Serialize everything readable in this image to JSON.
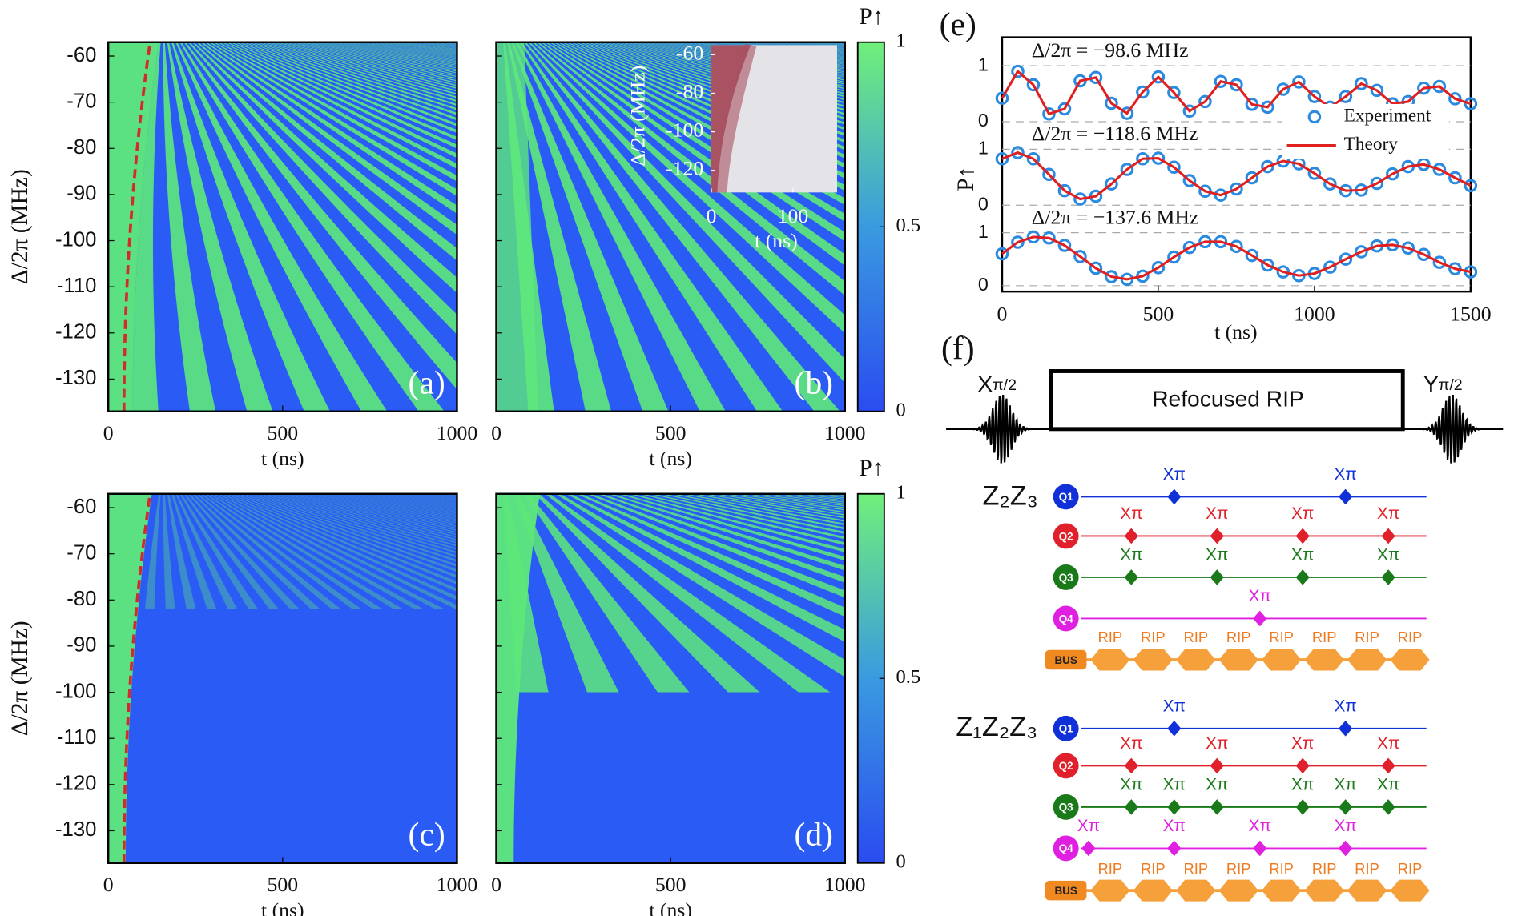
{
  "panels": {
    "a": "(a)",
    "b": "(b)",
    "c": "(c)",
    "d": "(d)",
    "e": "(e)",
    "f": "(f)"
  },
  "heatmap_axes": {
    "xlim": [
      0,
      1000
    ],
    "xticks": [
      0,
      500,
      1000
    ],
    "ylim": [
      -137,
      -57
    ],
    "yticks": [
      -60,
      -70,
      -80,
      -90,
      -100,
      -110,
      -120,
      -130
    ],
    "xlabel": "t (ns)",
    "ylabel": "Δ/2π (MHz)"
  },
  "colorbar": {
    "label": "P↑",
    "lim": [
      0,
      1
    ],
    "ticks": [
      0,
      0.5,
      1
    ]
  },
  "inset": {
    "xlim": [
      0,
      154
    ],
    "xticks": [
      0,
      100
    ],
    "ylim": [
      -131.5,
      -55
    ],
    "yticks": [
      -60,
      -80,
      -100,
      -120
    ],
    "xlabel": "t (ns)",
    "ylabel": "Δ/2π (MHz)"
  },
  "chart_data": {
    "type": "line",
    "xlabel": "t (ns)",
    "ylabel": "P↑",
    "xlim": [
      0,
      1500
    ],
    "xticks": [
      0,
      500,
      1000,
      1500
    ],
    "x": [
      0,
      50,
      100,
      150,
      200,
      250,
      300,
      350,
      400,
      450,
      500,
      550,
      600,
      650,
      700,
      750,
      800,
      850,
      900,
      950,
      1000,
      1050,
      1100,
      1150,
      1200,
      1250,
      1300,
      1350,
      1400,
      1450,
      1500
    ],
    "panels": [
      {
        "annotation": "Δ/2π = −98.6 MHz",
        "ylim": [
          0,
          1
        ],
        "yticks": [
          0,
          1
        ],
        "series": [
          {
            "name": "Experiment",
            "color": "#2a8ae0",
            "values": [
              0.42,
              0.9,
              0.66,
              0.14,
              0.23,
              0.73,
              0.79,
              0.33,
              0.15,
              0.53,
              0.8,
              0.52,
              0.19,
              0.36,
              0.72,
              0.66,
              0.31,
              0.26,
              0.58,
              0.71,
              0.45,
              0.26,
              0.45,
              0.68,
              0.56,
              0.32,
              0.36,
              0.6,
              0.63,
              0.41,
              0.32
            ]
          },
          {
            "name": "Theory",
            "color": "#e02020",
            "values": [
              0.42,
              0.9,
              0.66,
              0.14,
              0.23,
              0.73,
              0.79,
              0.33,
              0.15,
              0.53,
              0.8,
              0.52,
              0.19,
              0.36,
              0.72,
              0.66,
              0.31,
              0.26,
              0.58,
              0.71,
              0.45,
              0.26,
              0.45,
              0.68,
              0.56,
              0.32,
              0.36,
              0.6,
              0.63,
              0.41,
              0.32
            ]
          }
        ]
      },
      {
        "annotation": "Δ/2π = −118.6 MHz",
        "ylim": [
          0,
          1
        ],
        "yticks": [
          0,
          1
        ],
        "series": [
          {
            "name": "Experiment",
            "color": "#2a8ae0",
            "values": [
              0.83,
              0.94,
              0.83,
              0.55,
              0.26,
              0.11,
              0.16,
              0.38,
              0.64,
              0.83,
              0.84,
              0.68,
              0.44,
              0.25,
              0.18,
              0.29,
              0.49,
              0.69,
              0.79,
              0.74,
              0.57,
              0.38,
              0.26,
              0.27,
              0.39,
              0.56,
              0.69,
              0.73,
              0.64,
              0.49,
              0.35
            ]
          },
          {
            "name": "Theory",
            "color": "#e02020",
            "values": [
              0.83,
              0.94,
              0.83,
              0.55,
              0.26,
              0.11,
              0.16,
              0.38,
              0.64,
              0.83,
              0.84,
              0.68,
              0.44,
              0.25,
              0.18,
              0.29,
              0.49,
              0.69,
              0.79,
              0.74,
              0.57,
              0.38,
              0.26,
              0.27,
              0.39,
              0.56,
              0.69,
              0.73,
              0.64,
              0.49,
              0.35
            ]
          }
        ]
      },
      {
        "annotation": "Δ/2π = −137.6 MHz",
        "ylim": [
          0,
          1
        ],
        "yticks": [
          0,
          1
        ],
        "series": [
          {
            "name": "Experiment",
            "color": "#2a8ae0",
            "values": [
              0.6,
              0.82,
              0.92,
              0.9,
              0.76,
              0.55,
              0.33,
              0.17,
              0.12,
              0.18,
              0.34,
              0.54,
              0.72,
              0.83,
              0.83,
              0.74,
              0.57,
              0.39,
              0.26,
              0.19,
              0.23,
              0.35,
              0.5,
              0.64,
              0.75,
              0.77,
              0.71,
              0.59,
              0.44,
              0.32,
              0.26
            ]
          },
          {
            "name": "Theory",
            "color": "#e02020",
            "values": [
              0.6,
              0.82,
              0.92,
              0.9,
              0.76,
              0.55,
              0.33,
              0.17,
              0.12,
              0.18,
              0.34,
              0.54,
              0.72,
              0.83,
              0.83,
              0.74,
              0.57,
              0.39,
              0.26,
              0.19,
              0.23,
              0.35,
              0.5,
              0.64,
              0.75,
              0.77,
              0.71,
              0.59,
              0.44,
              0.32,
              0.26
            ]
          }
        ]
      }
    ]
  },
  "sequence": {
    "x_letter": "X",
    "y_letter": "Y",
    "sub": "π/2",
    "box": "Refocused RIP"
  },
  "circuits": [
    {
      "label": "Z₂Z₃",
      "pulse_label": "Xπ",
      "block_label": "RIP",
      "bus": "BUS",
      "blocks": 8,
      "qubits": [
        {
          "name": "Q1",
          "color": "#1030d8",
          "pulses": [
            2,
            6
          ]
        },
        {
          "name": "Q2",
          "color": "#e0202a",
          "pulses": [
            1,
            3,
            5,
            7
          ]
        },
        {
          "name": "Q3",
          "color": "#1a7a1a",
          "pulses": [
            1,
            3,
            5,
            7
          ]
        },
        {
          "name": "Q4",
          "color": "#e020e0",
          "pulses": [
            4
          ]
        }
      ]
    },
    {
      "label": "Z₁Z₂Z₃",
      "pulse_label": "Xπ",
      "block_label": "RIP",
      "bus": "BUS",
      "blocks": 8,
      "qubits": [
        {
          "name": "Q1",
          "color": "#1030d8",
          "pulses": [
            2,
            6
          ]
        },
        {
          "name": "Q2",
          "color": "#e0202a",
          "pulses": [
            1,
            3,
            5,
            7
          ]
        },
        {
          "name": "Q3",
          "color": "#1a7a1a",
          "pulses": [
            1,
            2,
            3,
            5,
            6,
            7
          ]
        },
        {
          "name": "Q4",
          "color": "#e020e0",
          "pulses": [
            0,
            2,
            4,
            6
          ]
        }
      ]
    }
  ]
}
